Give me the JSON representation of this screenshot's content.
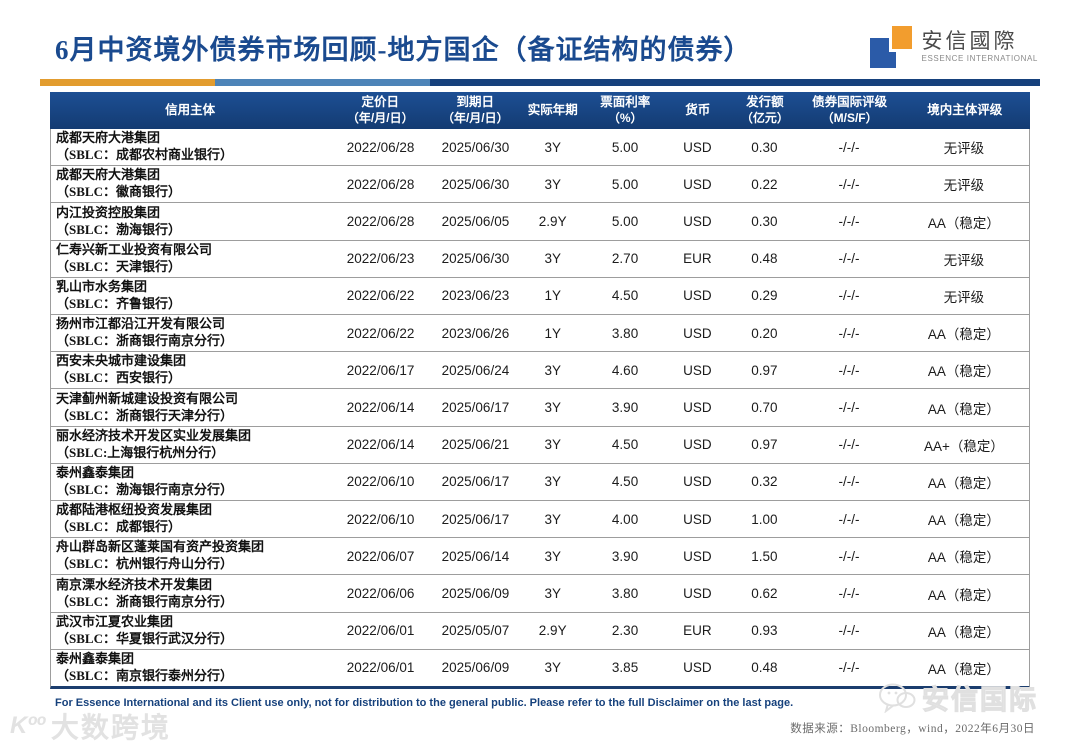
{
  "header": {
    "title": "6月中资境外债券市场回顾-地方国企（备证结构的债券）",
    "logo_cn": "安信國際",
    "logo_en": "ESSENCE INTERNATIONAL"
  },
  "divider_colors": {
    "orange": "#e29c2f",
    "light_blue": "#4d84b8",
    "navy": "#16417c"
  },
  "table": {
    "columns": [
      {
        "label": "信用主体",
        "sub": ""
      },
      {
        "label": "定价日",
        "sub": "（年/月/日）"
      },
      {
        "label": "到期日",
        "sub": "（年/月/日）"
      },
      {
        "label": "实际年期",
        "sub": ""
      },
      {
        "label": "票面利率",
        "sub": "（%）"
      },
      {
        "label": "货币",
        "sub": ""
      },
      {
        "label": "发行额",
        "sub": "（亿元）"
      },
      {
        "label": "债券国际评级",
        "sub": "（M/S/F）"
      },
      {
        "label": "境内主体评级",
        "sub": ""
      }
    ],
    "rows": [
      {
        "issuer": "成都天府大港集团",
        "sblc": "（SBLC：成都农村商业银行）",
        "pricing_date": "2022/06/28",
        "maturity_date": "2025/06/30",
        "tenor": "3Y",
        "coupon": "5.00",
        "currency": "USD",
        "amount": "0.30",
        "intl_rating": "-/-/-",
        "domestic_rating": "无评级"
      },
      {
        "issuer": "成都天府大港集团",
        "sblc": "（SBLC：徽商银行）",
        "pricing_date": "2022/06/28",
        "maturity_date": "2025/06/30",
        "tenor": "3Y",
        "coupon": "5.00",
        "currency": "USD",
        "amount": "0.22",
        "intl_rating": "-/-/-",
        "domestic_rating": "无评级"
      },
      {
        "issuer": "内江投资控股集团",
        "sblc": "（SBLC：渤海银行）",
        "pricing_date": "2022/06/28",
        "maturity_date": "2025/06/05",
        "tenor": "2.9Y",
        "coupon": "5.00",
        "currency": "USD",
        "amount": "0.30",
        "intl_rating": "-/-/-",
        "domestic_rating": "AA（稳定）"
      },
      {
        "issuer": "仁寿兴新工业投资有限公司",
        "sblc": "（SBLC：天津银行）",
        "pricing_date": "2022/06/23",
        "maturity_date": "2025/06/30",
        "tenor": "3Y",
        "coupon": "2.70",
        "currency": "EUR",
        "amount": "0.48",
        "intl_rating": "-/-/-",
        "domestic_rating": "无评级"
      },
      {
        "issuer": "乳山市水务集团",
        "sblc": "（SBLC：齐鲁银行）",
        "pricing_date": "2022/06/22",
        "maturity_date": "2023/06/23",
        "tenor": "1Y",
        "coupon": "4.50",
        "currency": "USD",
        "amount": "0.29",
        "intl_rating": "-/-/-",
        "domestic_rating": "无评级"
      },
      {
        "issuer": "扬州市江都沿江开发有限公司",
        "sblc": "（SBLC：浙商银行南京分行）",
        "pricing_date": "2022/06/22",
        "maturity_date": "2023/06/26",
        "tenor": "1Y",
        "coupon": "3.80",
        "currency": "USD",
        "amount": "0.20",
        "intl_rating": "-/-/-",
        "domestic_rating": "AA（稳定）"
      },
      {
        "issuer": "西安未央城市建设集团",
        "sblc": "（SBLC：西安银行）",
        "pricing_date": "2022/06/17",
        "maturity_date": "2025/06/24",
        "tenor": "3Y",
        "coupon": "4.60",
        "currency": "USD",
        "amount": "0.97",
        "intl_rating": "-/-/-",
        "domestic_rating": "AA（稳定）"
      },
      {
        "issuer": "天津蓟州新城建设投资有限公司",
        "sblc": "（SBLC：浙商银行天津分行）",
        "pricing_date": "2022/06/14",
        "maturity_date": "2025/06/17",
        "tenor": "3Y",
        "coupon": "3.90",
        "currency": "USD",
        "amount": "0.70",
        "intl_rating": "-/-/-",
        "domestic_rating": "AA（稳定）"
      },
      {
        "issuer": "丽水经济技术开发区实业发展集团",
        "sblc": "（SBLC:上海银行杭州分行）",
        "pricing_date": "2022/06/14",
        "maturity_date": "2025/06/21",
        "tenor": "3Y",
        "coupon": "4.50",
        "currency": "USD",
        "amount": "0.97",
        "intl_rating": "-/-/-",
        "domestic_rating": "AA+（稳定）"
      },
      {
        "issuer": "泰州鑫泰集团",
        "sblc": "（SBLC：渤海银行南京分行）",
        "pricing_date": "2022/06/10",
        "maturity_date": "2025/06/17",
        "tenor": "3Y",
        "coupon": "4.50",
        "currency": "USD",
        "amount": "0.32",
        "intl_rating": "-/-/-",
        "domestic_rating": "AA（稳定）"
      },
      {
        "issuer": "成都陆港枢纽投资发展集团",
        "sblc": "（SBLC：成都银行）",
        "pricing_date": "2022/06/10",
        "maturity_date": "2025/06/17",
        "tenor": "3Y",
        "coupon": "4.00",
        "currency": "USD",
        "amount": "1.00",
        "intl_rating": "-/-/-",
        "domestic_rating": "AA（稳定）"
      },
      {
        "issuer": "舟山群岛新区蓬莱国有资产投资集团",
        "sblc": "（SBLC：杭州银行舟山分行）",
        "pricing_date": "2022/06/07",
        "maturity_date": "2025/06/14",
        "tenor": "3Y",
        "coupon": "3.90",
        "currency": "USD",
        "amount": "1.50",
        "intl_rating": "-/-/-",
        "domestic_rating": "AA（稳定）"
      },
      {
        "issuer": "南京溧水经济技术开发集团",
        "sblc": "（SBLC：浙商银行南京分行）",
        "pricing_date": "2022/06/06",
        "maturity_date": "2025/06/09",
        "tenor": "3Y",
        "coupon": "3.80",
        "currency": "USD",
        "amount": "0.62",
        "intl_rating": "-/-/-",
        "domestic_rating": "AA（稳定）"
      },
      {
        "issuer": "武汉市江夏农业集团",
        "sblc": "（SBLC：华夏银行武汉分行）",
        "pricing_date": "2022/06/01",
        "maturity_date": "2025/05/07",
        "tenor": "2.9Y",
        "coupon": "2.30",
        "currency": "EUR",
        "amount": "0.93",
        "intl_rating": "-/-/-",
        "domestic_rating": "AA（稳定）"
      },
      {
        "issuer": "泰州鑫泰集团",
        "sblc": "（SBLC：南京银行泰州分行）",
        "pricing_date": "2022/06/01",
        "maturity_date": "2025/06/09",
        "tenor": "3Y",
        "coupon": "3.85",
        "currency": "USD",
        "amount": "0.48",
        "intl_rating": "-/-/-",
        "domestic_rating": "AA（稳定）"
      }
    ]
  },
  "footer": {
    "disclaimer": "For Essence International and its Client use only, not for distribution to the general public. Please refer to the full Disclaimer on the last page.",
    "data_source": "数据来源：Bloomberg，wind，2022年6月30日"
  },
  "watermarks": {
    "bottom_left": "大数跨境",
    "bottom_right": "安信国际"
  }
}
